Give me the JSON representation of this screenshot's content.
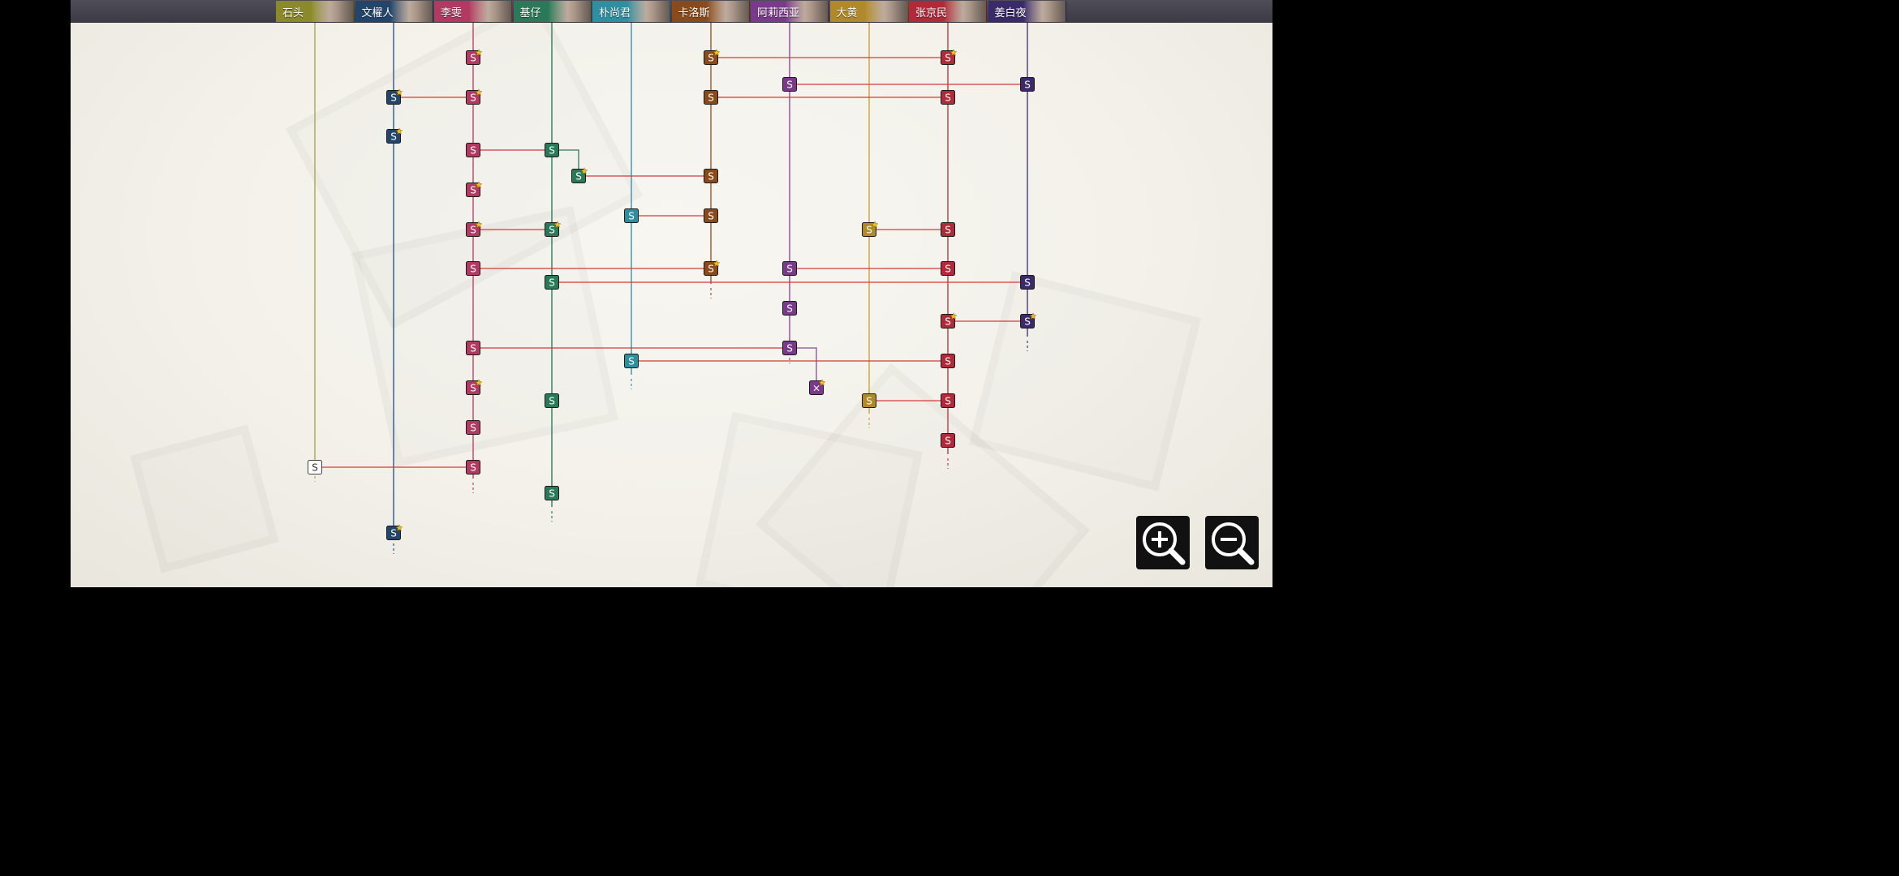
{
  "characters": [
    {
      "name": "石头",
      "color": "#8a8a2a",
      "line": "#a8a84a"
    },
    {
      "name": "文櫂人",
      "color": "#23456a",
      "line": "#2a5a8a"
    },
    {
      "name": "李雯",
      "color": "#b23a62",
      "line": "#c0436b"
    },
    {
      "name": "基仔",
      "color": "#2a7a5a",
      "line": "#2e7b5c"
    },
    {
      "name": "朴尚君",
      "color": "#2d8fa0",
      "line": "#3a93ad"
    },
    {
      "name": "卡洛斯",
      "color": "#8a4a1a",
      "line": "#9a5a2a"
    },
    {
      "name": "阿莉西亚",
      "color": "#7a3a8a",
      "line": "#8a4a9a"
    },
    {
      "name": "大黄",
      "color": "#b08a2a",
      "line": "#d0a040"
    },
    {
      "name": "张京民",
      "color": "#b02a3a",
      "line": "#c03a4a"
    },
    {
      "name": "姜白夜",
      "color": "#3a2a6a",
      "line": "#4a3a7a"
    }
  ],
  "node_label": "S",
  "special_node_label": "×",
  "colors": {
    "link": "#d63a3a",
    "star": "#f0c020"
  },
  "zoom": {
    "in_icon": "zoom-in-icon",
    "out_icon": "zoom-out-icon"
  }
}
